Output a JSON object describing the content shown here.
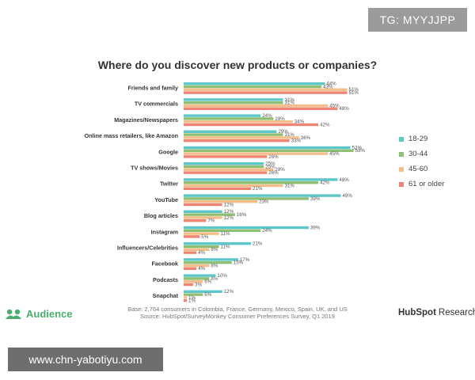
{
  "overlay_tag": "TG: MYYJJPP",
  "watermark": "www.chn-yabotiyu.com",
  "footnote": {
    "line1": "Base: 2,764 consumers in Colombia, France, Germany, Mexico, Spain, UK, and US",
    "line2": "Source: HubSpot/SurveyMonkey Consumer Preferences Survey, Q1 2019"
  },
  "brand_left": {
    "name": "Audience"
  },
  "brand_right": {
    "name": "HubSpot",
    "suffix": "Research"
  },
  "colors": {
    "18-29": "#5cc6c9",
    "30-44": "#8fbf72",
    "45-60": "#f2be8c",
    "61 or older": "#ee8474",
    "label": "#333333"
  },
  "chart_data": {
    "type": "bar",
    "orientation": "horizontal",
    "title": "Where do you discover new products or companies?",
    "xlabel": "",
    "ylabel": "",
    "xlim": [
      0,
      55
    ],
    "legend_position": "right",
    "categories": [
      "Friends and family",
      "TV commercials",
      "Magazines/Newspapers",
      "Online mass retailers, like Amazon",
      "Google",
      "TV shows/Movies",
      "Twitter",
      "YouTube",
      "Blog articles",
      "Instagram",
      "Influencers/Celebrities",
      "Facebook",
      "Podcasts",
      "Snapchat"
    ],
    "series": [
      {
        "name": "18-29",
        "values": [
          44,
          31,
          24,
          29,
          52,
          25,
          48,
          49,
          12,
          39,
          21,
          17,
          10,
          12
        ]
      },
      {
        "name": "30-44",
        "values": [
          43,
          31,
          28,
          31,
          53,
          25,
          42,
          39,
          16,
          24,
          11,
          15,
          8,
          6
        ]
      },
      {
        "name": "45-60",
        "values": [
          51,
          45,
          34,
          36,
          45,
          28,
          31,
          23,
          12,
          11,
          8,
          8,
          6,
          1
        ]
      },
      {
        "name": "61 or older",
        "values": [
          51,
          48,
          42,
          33,
          26,
          26,
          21,
          12,
          7,
          5,
          4,
          4,
          3,
          1
        ]
      }
    ]
  }
}
